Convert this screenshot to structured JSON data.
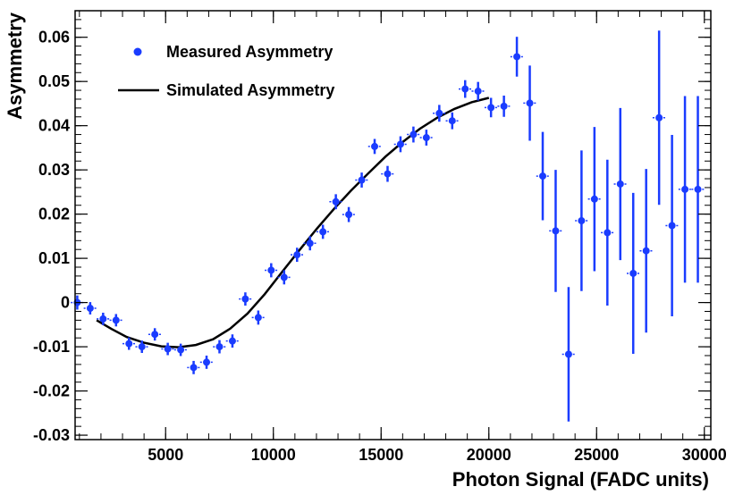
{
  "chart_data": {
    "type": "scatter",
    "title": "",
    "xlabel": "Photon Signal (FADC units)",
    "ylabel": "Asymmetry",
    "xlim": [
      800,
      30300
    ],
    "ylim": [
      -0.031,
      0.066
    ],
    "xticks": [
      5000,
      10000,
      15000,
      20000,
      25000,
      30000
    ],
    "xtick_labels": [
      "5000",
      "10000",
      "15000",
      "20000",
      "25000",
      "30000"
    ],
    "yticks": [
      -0.03,
      -0.02,
      -0.01,
      0,
      0.01,
      0.02,
      0.03,
      0.04,
      0.05,
      0.06
    ],
    "ytick_labels": [
      "-0.03",
      "-0.02",
      "-0.01",
      "0",
      "0.01",
      "0.02",
      "0.03",
      "0.04",
      "0.05",
      "0.06"
    ],
    "legend": {
      "position": "top-left",
      "entries": [
        "Measured Asymmetry",
        "Simulated Asymmetry"
      ]
    },
    "series": [
      {
        "name": "Measured Asymmetry",
        "kind": "points-with-errorbars",
        "color": "#1a3cff",
        "x": [
          900,
          1500,
          2100,
          2700,
          3300,
          3900,
          4500,
          5100,
          5700,
          6300,
          6900,
          7500,
          8100,
          8700,
          9300,
          9900,
          10500,
          11100,
          11700,
          12300,
          12900,
          13500,
          14100,
          14700,
          15300,
          15900,
          16500,
          17100,
          17700,
          18300,
          18900,
          19500,
          20100,
          20700,
          21300,
          21900,
          22500,
          23100,
          23700,
          24300,
          24900,
          25500,
          26100,
          26700,
          27300,
          27900,
          28500,
          29100,
          29700
        ],
        "y": [
          0.0,
          -0.0013,
          -0.0037,
          -0.004,
          -0.0093,
          -0.01,
          -0.0072,
          -0.0105,
          -0.0107,
          -0.0147,
          -0.0135,
          -0.01,
          -0.0087,
          0.0008,
          -0.0034,
          0.0073,
          0.0057,
          0.0108,
          0.0134,
          0.016,
          0.0228,
          0.0199,
          0.0277,
          0.0353,
          0.0291,
          0.0358,
          0.038,
          0.0373,
          0.0428,
          0.0411,
          0.0483,
          0.0478,
          0.0441,
          0.0444,
          0.0556,
          0.0451,
          0.0286,
          0.0162,
          -0.0117,
          0.0185,
          0.0234,
          0.0158,
          0.0268,
          0.0066,
          0.0117,
          0.0418,
          0.0174,
          0.0256,
          0.0256
        ],
        "yerr": [
          0.0016,
          0.0014,
          0.0014,
          0.0014,
          0.0014,
          0.0014,
          0.0014,
          0.0014,
          0.0014,
          0.0015,
          0.0015,
          0.0015,
          0.0015,
          0.0015,
          0.0016,
          0.0016,
          0.0016,
          0.0016,
          0.0016,
          0.0016,
          0.0017,
          0.0017,
          0.0017,
          0.0017,
          0.0018,
          0.0018,
          0.0018,
          0.0018,
          0.0019,
          0.0019,
          0.002,
          0.0021,
          0.0022,
          0.0024,
          0.0045,
          0.0085,
          0.01,
          0.0138,
          0.0152,
          0.0159,
          0.0163,
          0.0165,
          0.0172,
          0.0182,
          0.0185,
          0.0197,
          0.0205,
          0.0211,
          0.0211
        ]
      },
      {
        "name": "Simulated Asymmetry",
        "kind": "line",
        "color": "#000000",
        "x": [
          1800,
          2500,
          3200,
          4000,
          4800,
          5600,
          6400,
          7200,
          8000,
          8800,
          9600,
          10400,
          11200,
          12000,
          12800,
          13600,
          14400,
          15200,
          16000,
          16800,
          17600,
          18400,
          19200,
          20000
        ],
        "y": [
          -0.004,
          -0.006,
          -0.0078,
          -0.0091,
          -0.0099,
          -0.0101,
          -0.0096,
          -0.0083,
          -0.0059,
          -0.0025,
          0.0019,
          0.0069,
          0.0118,
          0.0166,
          0.0211,
          0.0253,
          0.0292,
          0.033,
          0.0363,
          0.0393,
          0.0418,
          0.0438,
          0.0453,
          0.0463
        ]
      }
    ]
  }
}
